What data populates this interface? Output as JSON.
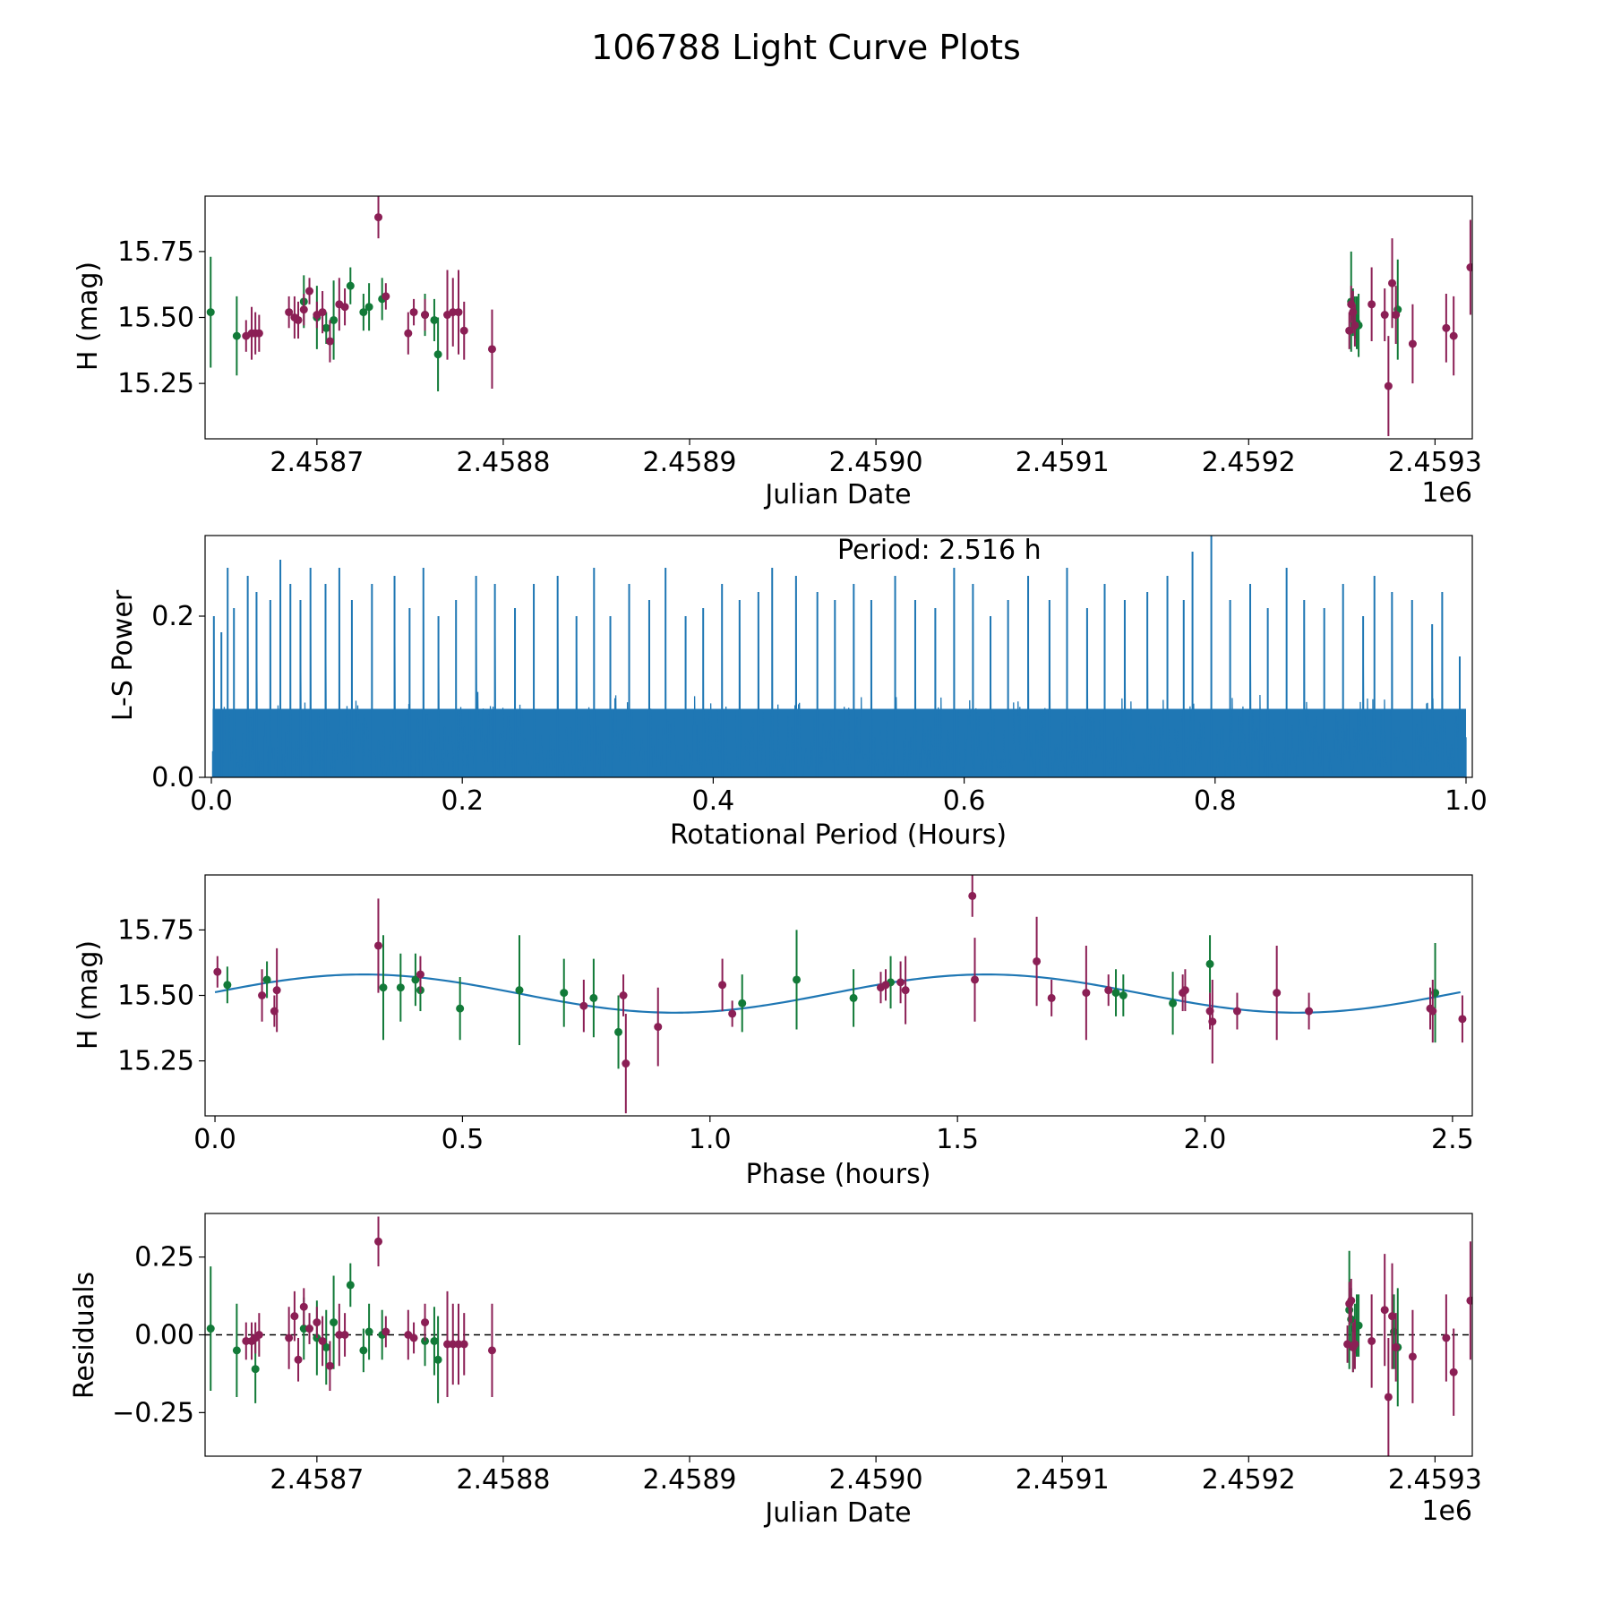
{
  "figure_title": "106788 Light Curve Plots",
  "colors": {
    "green": "#127a38",
    "maroon": "#8b1f55",
    "line": "#1f77b4",
    "axis": "#000000"
  },
  "chart_data": [
    {
      "id": "lightcurve",
      "type": "scatter",
      "xlabel": "Julian Date",
      "ylabel": "H (mag)",
      "offset_label": "1e6",
      "xlim": [
        2.45864,
        2.45932
      ],
      "ylim": [
        15.04,
        15.96
      ],
      "xticks": [
        2.4587,
        2.4588,
        2.4589,
        2.459,
        2.4591,
        2.4592,
        2.4593
      ],
      "xtick_labels": [
        "2.4587",
        "2.4588",
        "2.4589",
        "2.4590",
        "2.4591",
        "2.4592",
        "2.4593"
      ],
      "yticks": [
        15.25,
        15.5,
        15.75
      ],
      "ytick_labels": [
        "15.25",
        "15.50",
        "15.75"
      ],
      "series": [
        {
          "name": "green",
          "color": "green",
          "x": [
            2.458643,
            2.458657,
            2.458693,
            2.4587,
            2.458705,
            2.458709,
            2.458718,
            2.458725,
            2.458728,
            2.458735,
            2.458758,
            2.458763,
            2.458765
          ],
          "y": [
            15.52,
            15.43,
            15.56,
            15.5,
            15.46,
            15.49,
            15.62,
            15.52,
            15.54,
            15.57,
            15.51,
            15.49,
            15.36
          ],
          "err": [
            0.21,
            0.15,
            0.1,
            0.12,
            0.06,
            0.15,
            0.07,
            0.07,
            0.09,
            0.08,
            0.08,
            0.08,
            0.14
          ]
        },
        {
          "name": "maroon",
          "color": "maroon",
          "x": [
            2.458662,
            2.458665,
            2.458667,
            2.458669,
            2.458685,
            2.458688,
            2.45869,
            2.458693,
            2.458696,
            2.4587,
            2.458703,
            2.458707,
            2.458712,
            2.458715,
            2.458733,
            2.458737,
            2.458749,
            2.458752,
            2.458758,
            2.45877,
            2.458773,
            2.458776,
            2.458779,
            2.458794
          ],
          "y": [
            15.43,
            15.44,
            15.44,
            15.44,
            15.52,
            15.5,
            15.49,
            15.53,
            15.6,
            15.51,
            15.52,
            15.41,
            15.55,
            15.54,
            15.88,
            15.58,
            15.44,
            15.52,
            15.51,
            15.51,
            15.52,
            15.52,
            15.45,
            15.38
          ],
          "err": [
            0.06,
            0.1,
            0.08,
            0.07,
            0.06,
            0.08,
            0.07,
            0.06,
            0.05,
            0.05,
            0.08,
            0.08,
            0.1,
            0.07,
            0.08,
            0.05,
            0.08,
            0.05,
            0.06,
            0.17,
            0.13,
            0.16,
            0.11,
            0.15
          ]
        },
        {
          "name": "green-late",
          "color": "green",
          "x": [
            2.459255,
            2.459256,
            2.459257,
            2.459258,
            2.459259,
            2.45928
          ],
          "y": [
            15.56,
            15.52,
            15.5,
            15.48,
            15.47,
            15.53
          ],
          "err": [
            0.19,
            0.09,
            0.08,
            0.1,
            0.12,
            0.19
          ]
        },
        {
          "name": "maroon-late",
          "color": "maroon",
          "x": [
            2.459254,
            2.459255,
            2.459256,
            2.459257,
            2.459266,
            2.459273,
            2.459275,
            2.459277,
            2.459279,
            2.459288,
            2.459306,
            2.45931,
            2.459319
          ],
          "y": [
            15.45,
            15.55,
            15.52,
            15.47,
            15.55,
            15.51,
            15.24,
            15.63,
            15.51,
            15.4,
            15.46,
            15.43,
            15.69
          ],
          "err": [
            0.07,
            0.07,
            0.08,
            0.08,
            0.14,
            0.1,
            0.19,
            0.17,
            0.11,
            0.15,
            0.13,
            0.15,
            0.18
          ]
        }
      ]
    },
    {
      "id": "periodogram",
      "type": "line",
      "xlabel": "Rotational Period (Hours)",
      "ylabel": "L-S Power",
      "annotation": "Period: 2.516 h",
      "xlim": [
        -0.005,
        1.005
      ],
      "ylim": [
        0,
        0.3
      ],
      "xticks": [
        0.0,
        0.2,
        0.4,
        0.6,
        0.8,
        1.0
      ],
      "xtick_labels": [
        "0.0",
        "0.2",
        "0.4",
        "0.6",
        "0.8",
        "1.0"
      ],
      "yticks": [
        0.0,
        0.2
      ],
      "ytick_labels": [
        "0.0",
        "0.2"
      ],
      "series": [
        {
          "name": "L-S power",
          "color": "line",
          "x_range": [
            0.001,
            1.0
          ],
          "n_points": 1400,
          "typical_max": 0.1,
          "peaks": {
            "x": [
              0.002,
              0.008,
              0.013,
              0.018,
              0.029,
              0.036,
              0.047,
              0.055,
              0.063,
              0.071,
              0.079,
              0.091,
              0.102,
              0.112,
              0.128,
              0.146,
              0.158,
              0.169,
              0.181,
              0.195,
              0.211,
              0.226,
              0.242,
              0.257,
              0.276,
              0.291,
              0.305,
              0.318,
              0.333,
              0.349,
              0.362,
              0.378,
              0.392,
              0.407,
              0.421,
              0.436,
              0.447,
              0.466,
              0.483,
              0.497,
              0.512,
              0.526,
              0.545,
              0.561,
              0.577,
              0.592,
              0.607,
              0.621,
              0.635,
              0.651,
              0.668,
              0.682,
              0.698,
              0.712,
              0.728,
              0.746,
              0.762,
              0.775,
              0.782,
              0.797,
              0.812,
              0.828,
              0.842,
              0.857,
              0.871,
              0.887,
              0.902,
              0.918,
              0.927,
              0.941,
              0.957,
              0.973,
              0.981,
              0.995
            ],
            "y": [
              0.2,
              0.18,
              0.26,
              0.21,
              0.25,
              0.23,
              0.22,
              0.27,
              0.24,
              0.22,
              0.26,
              0.24,
              0.26,
              0.22,
              0.24,
              0.25,
              0.21,
              0.26,
              0.2,
              0.22,
              0.25,
              0.24,
              0.21,
              0.24,
              0.25,
              0.2,
              0.26,
              0.2,
              0.24,
              0.22,
              0.26,
              0.2,
              0.21,
              0.24,
              0.22,
              0.23,
              0.26,
              0.25,
              0.23,
              0.22,
              0.24,
              0.22,
              0.25,
              0.22,
              0.21,
              0.26,
              0.24,
              0.2,
              0.22,
              0.25,
              0.22,
              0.26,
              0.21,
              0.24,
              0.22,
              0.23,
              0.25,
              0.22,
              0.28,
              0.31,
              0.22,
              0.24,
              0.21,
              0.26,
              0.22,
              0.21,
              0.24,
              0.2,
              0.25,
              0.23,
              0.22,
              0.19,
              0.23,
              0.15
            ]
          }
        }
      ]
    },
    {
      "id": "phased",
      "type": "scatter",
      "xlabel": "Phase (hours)",
      "ylabel": "H (mag)",
      "xlim": [
        -0.02,
        2.54
      ],
      "ylim": [
        15.04,
        15.96
      ],
      "xticks": [
        0.0,
        0.5,
        1.0,
        1.5,
        2.0,
        2.5
      ],
      "xtick_labels": [
        "0.0",
        "0.5",
        "1.0",
        "1.5",
        "2.0",
        "2.5"
      ],
      "yticks": [
        15.25,
        15.5,
        15.75
      ],
      "ytick_labels": [
        "15.25",
        "15.50",
        "15.75"
      ],
      "model": {
        "name": "sinusoid fit",
        "color": "line",
        "mean": 15.507,
        "amplitude": 0.073,
        "period_cycle": 1.258,
        "phase_of_max": 0.3,
        "x_range": [
          0.0,
          2.516
        ]
      },
      "series": [
        {
          "name": "green",
          "color": "green",
          "x": [
            0.025,
            0.105,
            0.34,
            0.375,
            0.405,
            0.415,
            0.495,
            0.615,
            0.705,
            0.765,
            0.815,
            1.065,
            1.175,
            1.29,
            1.365,
            1.82,
            1.835,
            1.935,
            2.01,
            2.465
          ],
          "y": [
            15.54,
            15.56,
            15.53,
            15.53,
            15.56,
            15.52,
            15.45,
            15.52,
            15.51,
            15.49,
            15.36,
            15.47,
            15.56,
            15.49,
            15.55,
            15.51,
            15.5,
            15.47,
            15.62,
            15.51
          ],
          "err": [
            0.07,
            0.07,
            0.2,
            0.13,
            0.1,
            0.08,
            0.12,
            0.21,
            0.13,
            0.15,
            0.14,
            0.11,
            0.19,
            0.11,
            0.1,
            0.09,
            0.08,
            0.12,
            0.11,
            0.19
          ]
        },
        {
          "name": "maroon",
          "color": "maroon",
          "x": [
            0.005,
            0.095,
            0.12,
            0.125,
            0.33,
            0.415,
            0.745,
            0.825,
            0.83,
            0.895,
            1.025,
            1.045,
            1.345,
            1.355,
            1.385,
            1.395,
            1.53,
            1.535,
            1.66,
            1.69,
            1.76,
            1.805,
            1.955,
            1.96,
            2.01,
            2.015,
            2.065,
            2.145,
            2.21,
            2.455,
            2.46,
            2.52
          ],
          "y": [
            15.59,
            15.5,
            15.44,
            15.52,
            15.69,
            15.58,
            15.46,
            15.5,
            15.24,
            15.38,
            15.54,
            15.43,
            15.53,
            15.54,
            15.55,
            15.52,
            15.88,
            15.56,
            15.63,
            15.49,
            15.51,
            15.52,
            15.51,
            15.52,
            15.44,
            15.4,
            15.44,
            15.51,
            15.44,
            15.45,
            15.44,
            15.41
          ],
          "err": [
            0.06,
            0.1,
            0.06,
            0.16,
            0.18,
            0.07,
            0.1,
            0.08,
            0.19,
            0.15,
            0.1,
            0.05,
            0.06,
            0.06,
            0.08,
            0.13,
            0.08,
            0.16,
            0.17,
            0.07,
            0.18,
            0.06,
            0.07,
            0.08,
            0.07,
            0.16,
            0.07,
            0.18,
            0.07,
            0.08,
            0.12,
            0.09
          ]
        }
      ]
    },
    {
      "id": "residuals",
      "type": "scatter",
      "xlabel": "Julian Date",
      "ylabel": "Residuals",
      "offset_label": "1e6",
      "xlim": [
        2.45864,
        2.45932
      ],
      "ylim": [
        -0.39,
        0.39
      ],
      "xticks": [
        2.4587,
        2.4588,
        2.4589,
        2.459,
        2.4591,
        2.4592,
        2.4593
      ],
      "xtick_labels": [
        "2.4587",
        "2.4588",
        "2.4589",
        "2.4590",
        "2.4591",
        "2.4592",
        "2.4593"
      ],
      "yticks": [
        -0.25,
        0.0,
        0.25
      ],
      "ytick_labels": [
        "−0.25",
        "0.00",
        "0.25"
      ],
      "zero_line": {
        "y": 0,
        "style": "dashed"
      },
      "series": [
        {
          "name": "green",
          "color": "green",
          "x": [
            2.458643,
            2.458657,
            2.458667,
            2.458693,
            2.4587,
            2.458705,
            2.458709,
            2.458718,
            2.458725,
            2.458728,
            2.458735,
            2.458758,
            2.458763,
            2.458765
          ],
          "y": [
            0.02,
            -0.05,
            -0.11,
            0.02,
            -0.01,
            -0.04,
            0.04,
            0.16,
            -0.05,
            0.01,
            0.0,
            -0.02,
            -0.02,
            -0.08
          ],
          "err": [
            0.2,
            0.15,
            0.11,
            0.1,
            0.12,
            0.12,
            0.15,
            0.07,
            0.07,
            0.09,
            0.08,
            0.08,
            0.11,
            0.14
          ]
        },
        {
          "name": "maroon",
          "color": "maroon",
          "x": [
            2.458662,
            2.458665,
            2.458667,
            2.458669,
            2.458685,
            2.458688,
            2.45869,
            2.458693,
            2.458696,
            2.4587,
            2.458703,
            2.458707,
            2.458712,
            2.458715,
            2.458733,
            2.458737,
            2.458749,
            2.458752,
            2.458758,
            2.45877,
            2.458773,
            2.458776,
            2.458779,
            2.458794
          ],
          "y": [
            -0.02,
            -0.02,
            -0.01,
            0.0,
            -0.01,
            0.06,
            -0.08,
            0.09,
            0.02,
            0.04,
            -0.02,
            -0.1,
            0.0,
            0.0,
            0.3,
            0.01,
            0.0,
            -0.01,
            0.04,
            -0.03,
            -0.03,
            -0.03,
            -0.03,
            -0.05
          ],
          "err": [
            0.06,
            0.06,
            0.05,
            0.07,
            0.1,
            0.08,
            0.07,
            0.06,
            0.05,
            0.05,
            0.08,
            0.08,
            0.1,
            0.07,
            0.08,
            0.05,
            0.08,
            0.05,
            0.06,
            0.17,
            0.13,
            0.13,
            0.1,
            0.15
          ]
        },
        {
          "name": "green-late",
          "color": "green",
          "x": [
            2.459254,
            2.459255,
            2.459256,
            2.459257,
            2.459258,
            2.459259,
            2.459278,
            2.45928
          ],
          "y": [
            0.08,
            0.05,
            -0.04,
            0.02,
            0.03,
            0.03,
            0.01,
            -0.04
          ],
          "err": [
            0.19,
            0.1,
            0.08,
            0.08,
            0.1,
            0.1,
            0.12,
            0.19
          ]
        },
        {
          "name": "maroon-late",
          "color": "maroon",
          "x": [
            2.459253,
            2.459254,
            2.459255,
            2.459256,
            2.459257,
            2.459266,
            2.459273,
            2.459275,
            2.459277,
            2.459279,
            2.459288,
            2.459306,
            2.45931,
            2.459319
          ],
          "y": [
            -0.03,
            0.1,
            0.11,
            -0.04,
            -0.03,
            -0.02,
            0.08,
            -0.2,
            0.06,
            -0.04,
            -0.07,
            -0.01,
            -0.12,
            0.11
          ],
          "err": [
            0.06,
            0.07,
            0.07,
            0.08,
            0.08,
            0.15,
            0.18,
            0.19,
            0.17,
            0.11,
            0.15,
            0.14,
            0.14,
            0.19
          ]
        }
      ]
    }
  ]
}
